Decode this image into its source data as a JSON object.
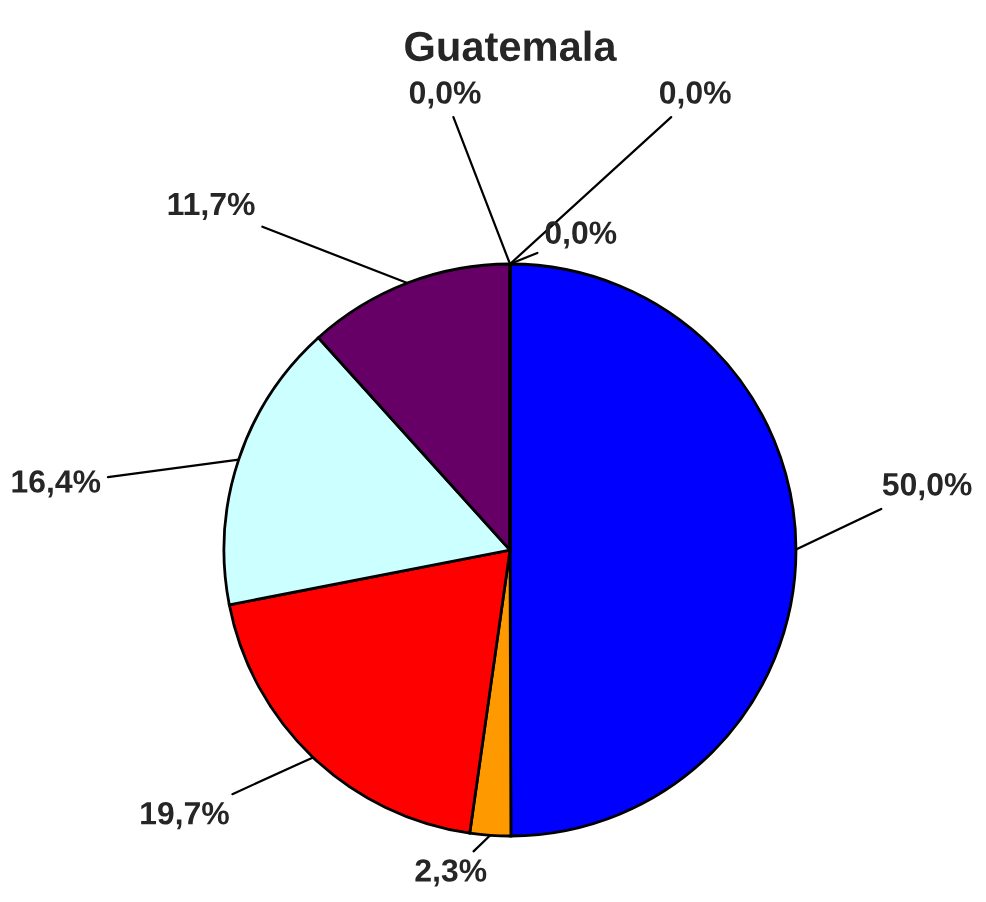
{
  "chart_data": {
    "type": "pie",
    "title": "Guatemala",
    "categories": [
      null,
      null,
      null,
      null,
      null,
      null,
      null,
      null
    ],
    "values": [
      50.0,
      2.3,
      19.7,
      16.4,
      11.7,
      0.0,
      0.0,
      0.0
    ],
    "colors": [
      "#0000ff",
      "#ff9900",
      "#ff0000",
      "#ccffff",
      "#660066",
      "#9999ff",
      "#993366",
      "#ffffcc"
    ],
    "value_labels": [
      "50,0%",
      "2,3%",
      "19,7%",
      "16,4%",
      "11,7%",
      "0,0%",
      "0,0%",
      "0,0%"
    ],
    "legend": false
  }
}
